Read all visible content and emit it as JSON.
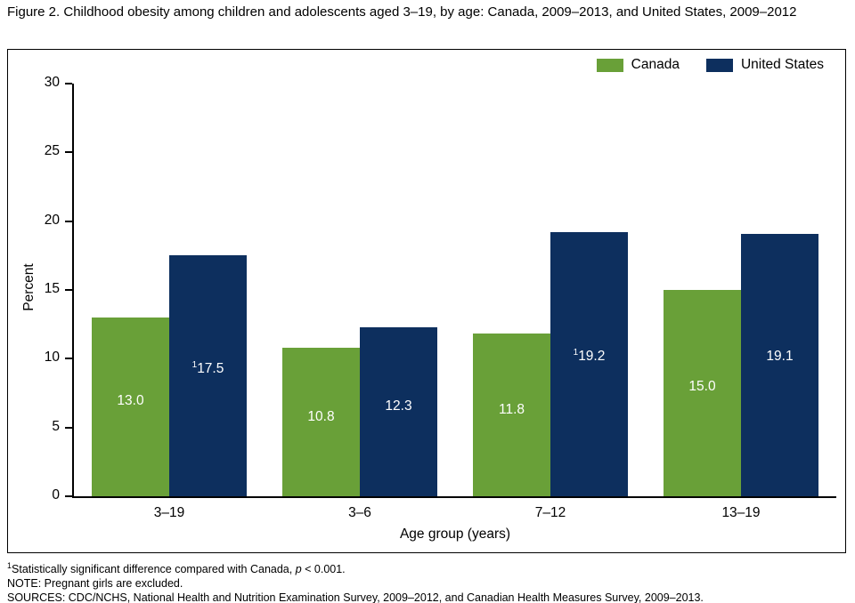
{
  "title": "Figure 2. Childhood obesity among children and adolescents aged 3–19, by age: Canada, 2009–2013, and United States, 2009–2012",
  "colors": {
    "canada_green": "#69a038",
    "us_navy": "#0d2f5e",
    "bar_label_text": "#ffffff",
    "axis": "#000000"
  },
  "chart_data": {
    "type": "bar",
    "categories": [
      "3–19",
      "3–6",
      "7–12",
      "13–19"
    ],
    "series": [
      {
        "name": "Canada",
        "color_key": "canada_green",
        "values": [
          13.0,
          10.8,
          11.8,
          15.0
        ],
        "labels": [
          "13.0",
          "10.8",
          "11.8",
          "15.0"
        ],
        "superscripts": [
          "",
          "",
          "",
          ""
        ]
      },
      {
        "name": "United States",
        "color_key": "us_navy",
        "values": [
          17.5,
          12.3,
          19.2,
          19.1
        ],
        "labels": [
          "17.5",
          "12.3",
          "19.2",
          "19.1"
        ],
        "superscripts": [
          "1",
          "",
          "1",
          ""
        ]
      }
    ],
    "title": "Figure 2. Childhood obesity among children and adolescents aged 3–19, by age: Canada, 2009–2013, and United States, 2009–2012",
    "xlabel": "Age group (years)",
    "ylabel": "Percent",
    "ylim": [
      0,
      30
    ],
    "yticks": [
      0,
      5,
      10,
      15,
      20,
      25,
      30
    ],
    "legend_position": "top-right",
    "grid": false
  },
  "footnotes": {
    "significance": {
      "sup": "1",
      "text_before_p": "Statistically significant difference compared with Canada, ",
      "p_var": "p",
      "text_after_p": " < 0.001."
    },
    "note": "NOTE: Pregnant girls are excluded.",
    "sources": "SOURCES: CDC/NCHS, National Health and Nutrition Examination Survey, 2009–2012, and Canadian Health Measures Survey, 2009–2013."
  }
}
